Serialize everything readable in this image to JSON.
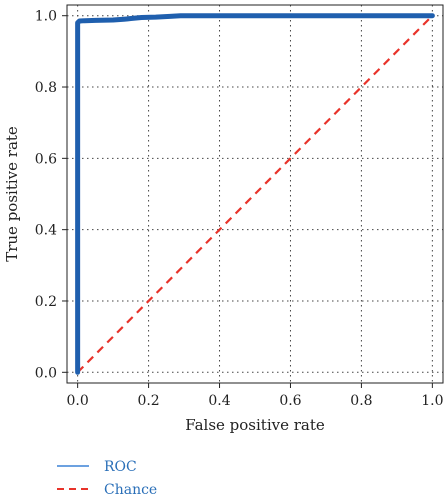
{
  "chart_data": {
    "type": "line",
    "xlabel": "False positive rate",
    "ylabel": "True positive rate",
    "xlim": [
      -0.03,
      1.03
    ],
    "ylim": [
      -0.03,
      1.03
    ],
    "xticks": [
      "0.0",
      "0.2",
      "0.4",
      "0.6",
      "0.8",
      "1.0"
    ],
    "yticks": [
      "0.0",
      "0.2",
      "0.4",
      "0.6",
      "0.8",
      "1.0"
    ],
    "grid": true,
    "legend_position": "bottom-left, outside plot",
    "series": [
      {
        "name": "ROC",
        "color": "#1f5fae",
        "style": "solid",
        "x": [
          0.0,
          0.0,
          0.005,
          0.02,
          0.05,
          0.1,
          0.13,
          0.15,
          0.18,
          0.22,
          0.26,
          0.29,
          0.4,
          0.6,
          0.8,
          1.0
        ],
        "y": [
          0.0,
          0.98,
          0.985,
          0.986,
          0.987,
          0.988,
          0.99,
          0.992,
          0.995,
          0.996,
          0.998,
          1.0,
          1.0,
          1.0,
          1.0,
          1.0
        ]
      },
      {
        "name": "Chance",
        "color": "#e8332a",
        "style": "dashed",
        "x": [
          0.0,
          1.0
        ],
        "y": [
          0.0,
          1.0
        ]
      }
    ]
  }
}
